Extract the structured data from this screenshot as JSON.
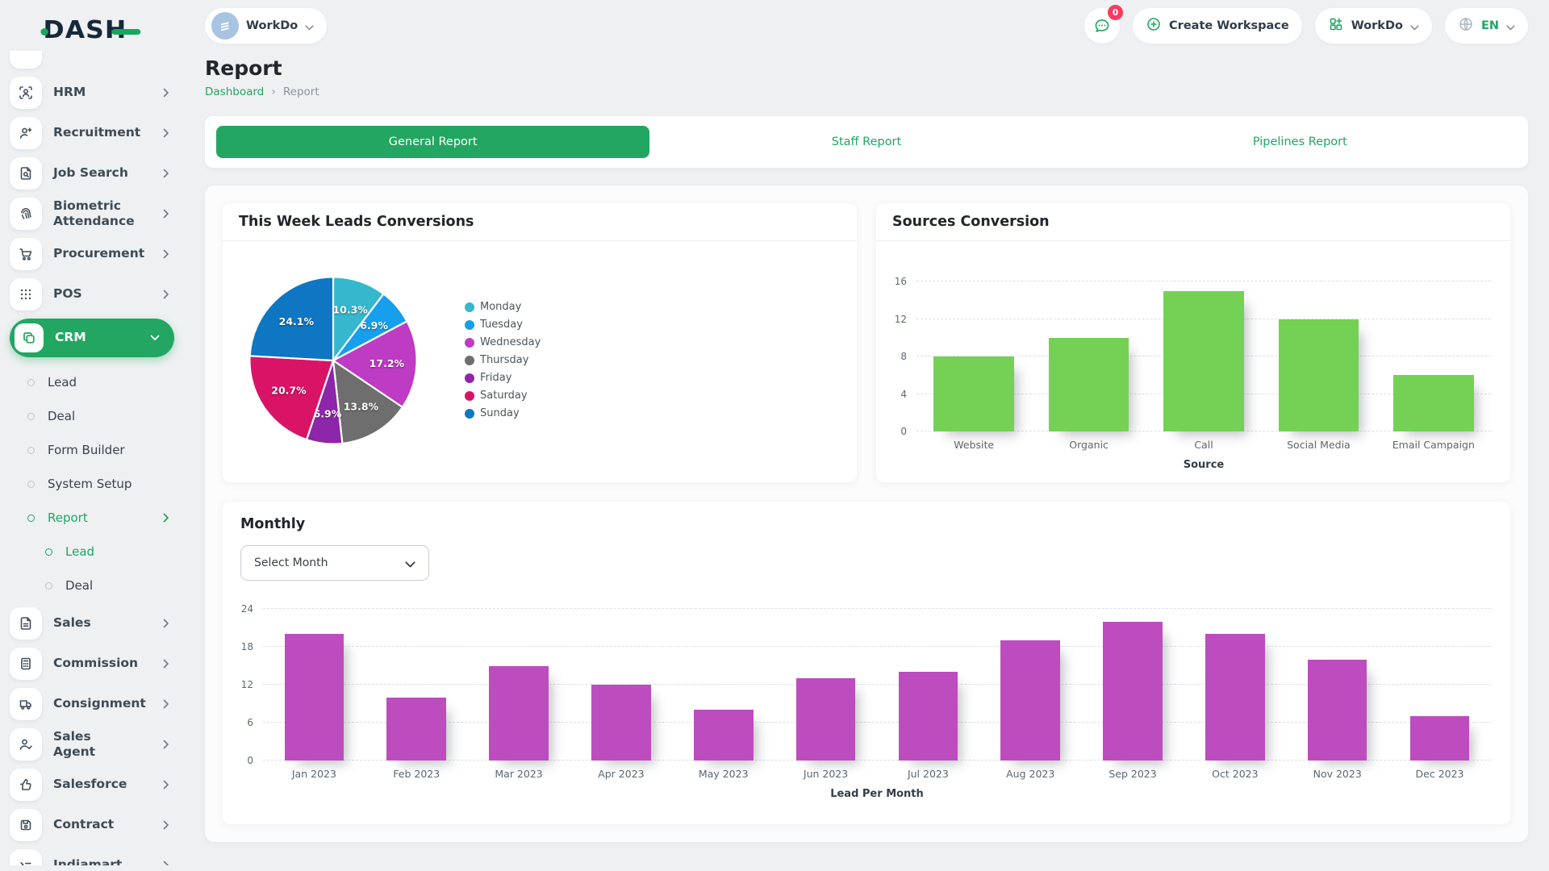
{
  "brand": {
    "name": "DASH"
  },
  "topbar": {
    "workspace_name": "WorkDo",
    "messages_badge": "0",
    "create_workspace_label": "Create Workspace",
    "workspace_switcher_label": "WorkDo",
    "language": "EN"
  },
  "sidebar": {
    "items_top": [
      {
        "label": "HRM"
      },
      {
        "label": "Recruitment"
      },
      {
        "label": "Job Search"
      },
      {
        "label": "Biometric Attendance"
      },
      {
        "label": "Procurement"
      },
      {
        "label": "POS"
      },
      {
        "label": "CRM",
        "active": true
      }
    ],
    "crm_children": [
      {
        "label": "Lead"
      },
      {
        "label": "Deal"
      },
      {
        "label": "Form Builder"
      },
      {
        "label": "System Setup"
      },
      {
        "label": "Report",
        "active": true
      }
    ],
    "report_children": [
      {
        "label": "Lead",
        "active": true
      },
      {
        "label": "Deal"
      }
    ],
    "items_bottom": [
      {
        "label": "Sales"
      },
      {
        "label": "Commission"
      },
      {
        "label": "Consignment"
      },
      {
        "label": "Sales Agent"
      },
      {
        "label": "Salesforce"
      },
      {
        "label": "Contract"
      },
      {
        "label": "Indiamart"
      }
    ]
  },
  "page": {
    "title": "Report",
    "breadcrumb": {
      "home": "Dashboard",
      "current": "Report"
    }
  },
  "tabs": [
    {
      "label": "General Report",
      "active": true
    },
    {
      "label": "Staff Report"
    },
    {
      "label": "Pipelines Report"
    }
  ],
  "monthly": {
    "select_placeholder": "Select Month"
  },
  "chart_data": [
    {
      "id": "week_leads_pie",
      "type": "pie",
      "title": "This Week Leads Conversions",
      "labels": [
        "Monday",
        "Tuesday",
        "Wednesday",
        "Thursday",
        "Friday",
        "Saturday",
        "Sunday"
      ],
      "values": [
        10.3,
        6.9,
        17.2,
        13.8,
        6.9,
        20.7,
        24.1
      ],
      "unit": "%",
      "colors": [
        "#35b7cd",
        "#169fed",
        "#be3bc4",
        "#6e6e6e",
        "#8d26a8",
        "#d91466",
        "#0e76c3"
      ],
      "legend_position": "right"
    },
    {
      "id": "sources_conversion_bar",
      "type": "bar",
      "title": "Sources Conversion",
      "categories": [
        "Website",
        "Organic",
        "Call",
        "Social Media",
        "Email Campaign"
      ],
      "values": [
        8,
        10,
        15,
        12,
        6
      ],
      "xlabel": "Source",
      "ylabel": "",
      "ylim": [
        0,
        16
      ],
      "yticks": [
        0,
        4,
        8,
        12,
        16
      ],
      "bar_color": "#74d155",
      "grid": "dashed-horizontal",
      "bar_width_pct": 70
    },
    {
      "id": "monthly_leads_bar",
      "type": "bar",
      "title": "Monthly",
      "categories": [
        "Jan 2023",
        "Feb 2023",
        "Mar 2023",
        "Apr 2023",
        "May 2023",
        "Jun 2023",
        "Jul 2023",
        "Aug 2023",
        "Sep 2023",
        "Oct 2023",
        "Nov 2023",
        "Dec 2023"
      ],
      "values": [
        20,
        10,
        15,
        12,
        8,
        13,
        14,
        19,
        22,
        20,
        16,
        7
      ],
      "xlabel": "Lead Per Month",
      "ylabel": "",
      "ylim": [
        0,
        24
      ],
      "yticks": [
        0,
        6,
        12,
        18,
        24
      ],
      "bar_color": "#bd4cbe",
      "grid": "dashed-horizontal",
      "bar_width_pct": 58
    }
  ]
}
